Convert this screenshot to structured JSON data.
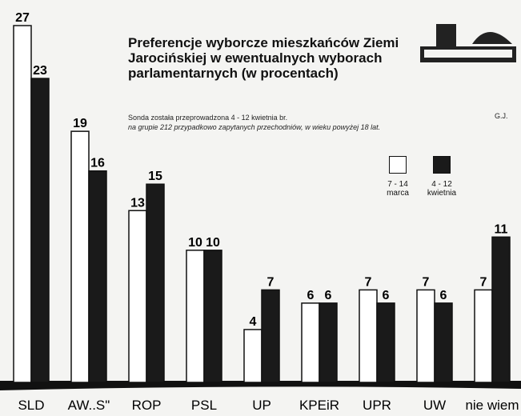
{
  "chart_data": {
    "type": "bar",
    "title": "Preferencje wyborcze mieszkańców Ziemi Jarocińskiej w ewentualnych wyborach parlamentarnych (w procentach)",
    "subtitle": [
      "Sonda została przeprowadzona 4 - 12 kwietnia br.",
      "na grupie 212 przypadkowo zapytanych przechodniów, w wieku powyżej 18 lat."
    ],
    "author": "G.J.",
    "categories": [
      "SLD",
      "AW..S\"",
      "ROP",
      "PSL",
      "UP",
      "KPEiR",
      "UPR",
      "UW",
      "nie wiem"
    ],
    "series": [
      {
        "name": "7 - 14 marca",
        "color": "#ffffff",
        "values": [
          27,
          19,
          13,
          10,
          4,
          6,
          7,
          7,
          7
        ]
      },
      {
        "name": "4 - 12 kwietnia",
        "color": "#1a1a1a",
        "values": [
          23,
          16,
          15,
          10,
          7,
          6,
          6,
          6,
          11
        ]
      }
    ],
    "ylim": [
      0,
      27
    ]
  }
}
